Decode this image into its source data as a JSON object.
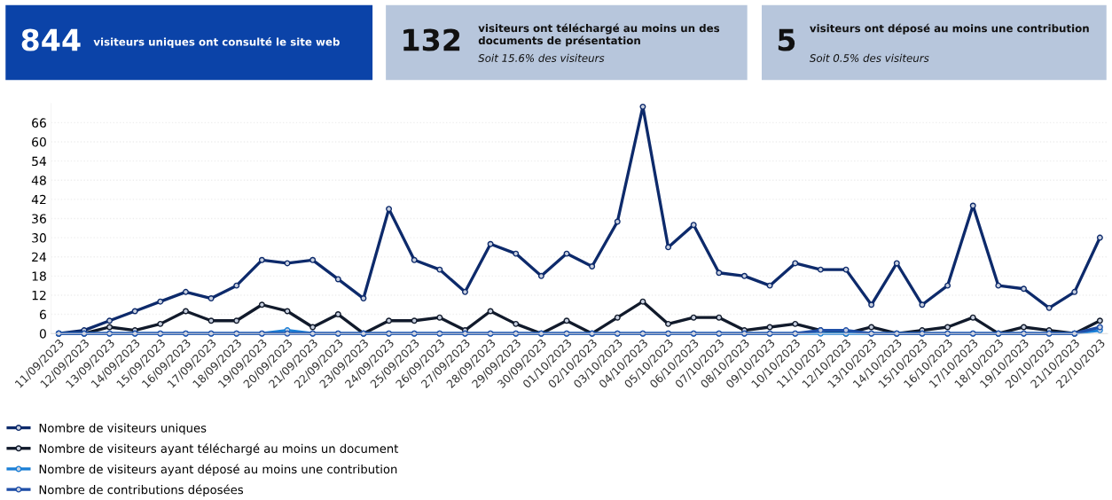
{
  "chart_data": {
    "type": "line",
    "annotations": [
      "844",
      "visiteurs uniques ont consulté le site web",
      "132",
      "visiteurs ont téléchargé au moins un des documents de présentation",
      "Soit 15.6% des visiteurs",
      "5",
      "visiteurs ont déposé au moins une contribution",
      "Soit 0.5% des visiteurs"
    ],
    "categories": [
      "11/09/2023",
      "12/09/2023",
      "13/09/2023",
      "14/09/2023",
      "15/09/2023",
      "16/09/2023",
      "17/09/2023",
      "18/09/2023",
      "19/09/2023",
      "20/09/2023",
      "21/09/2023",
      "22/09/2023",
      "23/09/2023",
      "24/09/2023",
      "25/09/2023",
      "26/09/2023",
      "27/09/2023",
      "28/09/2023",
      "29/09/2023",
      "30/09/2023",
      "01/10/2023",
      "02/10/2023",
      "03/10/2023",
      "04/10/2023",
      "05/10/2023",
      "06/10/2023",
      "07/10/2023",
      "08/10/2023",
      "09/10/2023",
      "10/10/2023",
      "11/10/2023",
      "12/10/2023",
      "13/10/2023",
      "14/10/2023",
      "15/10/2023",
      "16/10/2023",
      "17/10/2023",
      "18/10/2023",
      "19/10/2023",
      "20/10/2023",
      "21/10/2023",
      "22/10/2023"
    ],
    "series": [
      {
        "name": "Nombre de visiteurs uniques",
        "color": "#0d2a6b",
        "values": [
          0,
          1,
          4,
          7,
          10,
          13,
          11,
          15,
          23,
          22,
          23,
          17,
          11,
          39,
          23,
          20,
          13,
          28,
          25,
          18,
          25,
          21,
          35,
          71,
          27,
          34,
          19,
          18,
          15,
          22,
          20,
          20,
          9,
          22,
          9,
          15,
          40,
          15,
          14,
          8,
          13,
          30
        ]
      },
      {
        "name": "Nombre de visiteurs ayant téléchargé au moins un document",
        "color": "#111a2b",
        "values": [
          0,
          0,
          2,
          1,
          3,
          7,
          4,
          4,
          9,
          7,
          2,
          6,
          0,
          4,
          4,
          5,
          1,
          7,
          3,
          0,
          4,
          0,
          5,
          10,
          3,
          5,
          5,
          1,
          2,
          3,
          1,
          0,
          2,
          0,
          1,
          2,
          5,
          0,
          2,
          1,
          0,
          4
        ]
      },
      {
        "name": "Nombre de visiteurs ayant déposé au moins une contribution",
        "color": "#1a7fd6",
        "values": [
          0,
          0,
          0,
          0,
          0,
          0,
          0,
          0,
          0,
          1,
          0,
          0,
          0,
          0,
          0,
          0,
          0,
          0,
          0,
          0,
          0,
          0,
          0,
          0,
          0,
          0,
          0,
          0,
          0,
          0,
          0,
          0,
          0,
          0,
          0,
          0,
          0,
          0,
          0,
          0,
          0,
          1
        ]
      },
      {
        "name": "Nombre de contributions déposées",
        "color": "#1f4fa8",
        "values": [
          0,
          0,
          0,
          0,
          0,
          0,
          0,
          0,
          0,
          0,
          0,
          0,
          0,
          0,
          0,
          0,
          0,
          0,
          0,
          0,
          0,
          0,
          0,
          0,
          0,
          0,
          0,
          0,
          0,
          0,
          1,
          1,
          0,
          0,
          0,
          0,
          0,
          0,
          0,
          0,
          0,
          2
        ]
      }
    ],
    "ylim": [
      0,
      72
    ],
    "yticks": [
      0,
      6,
      12,
      18,
      24,
      30,
      36,
      42,
      48,
      54,
      60,
      66
    ],
    "grid": "y",
    "legend": "bottom",
    "marker": "circle",
    "line_style": "solid"
  }
}
